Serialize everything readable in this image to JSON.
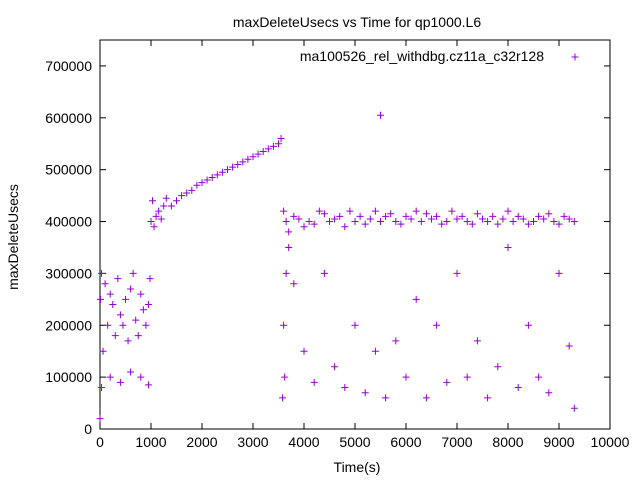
{
  "chart_data": {
    "type": "scatter",
    "title": "maxDeleteUsecs vs Time for qp1000.L6",
    "xlabel": "Time(s)",
    "ylabel": "maxDeleteUsecs",
    "xlim": [
      0,
      10000
    ],
    "ylim": [
      0,
      750000
    ],
    "x_ticks": [
      "0",
      "1000",
      "2000",
      "3000",
      "4000",
      "5000",
      "6000",
      "7000",
      "8000",
      "9000",
      "10000"
    ],
    "y_ticks": [
      "0",
      "100000",
      "200000",
      "300000",
      "400000",
      "500000",
      "600000",
      "700000"
    ],
    "grid": false,
    "legend_position": "top-right",
    "marker": "plus",
    "series": [
      {
        "name": "ma100526_rel_withdbg.cz11a_c32r128",
        "color": "#9400d3",
        "x": [
          0,
          10,
          30,
          60,
          100,
          150,
          200,
          250,
          300,
          350,
          400,
          450,
          500,
          550,
          600,
          650,
          700,
          750,
          800,
          850,
          900,
          950,
          980,
          1000,
          1030,
          1060,
          1100,
          1150,
          1200,
          1250,
          1300,
          1400,
          1500,
          1600,
          1700,
          1800,
          1900,
          2000,
          2100,
          2200,
          2300,
          2400,
          2500,
          2600,
          2700,
          2800,
          2900,
          3000,
          3100,
          3200,
          3300,
          3400,
          3500,
          3550,
          3600,
          3650,
          3700,
          3800,
          3900,
          4000,
          4100,
          4200,
          4300,
          4400,
          4500,
          4600,
          4700,
          4800,
          4900,
          5000,
          5100,
          5200,
          5300,
          5400,
          5500,
          5600,
          5700,
          5800,
          5900,
          6000,
          6100,
          6200,
          6300,
          6400,
          6500,
          6600,
          6700,
          6800,
          6900,
          7000,
          7100,
          7200,
          7300,
          7400,
          7500,
          7600,
          7700,
          7800,
          7900,
          8000,
          8100,
          8200,
          8300,
          8400,
          8500,
          8600,
          8700,
          8800,
          8900,
          9000,
          9100,
          9200,
          9300
        ],
        "y": [
          20000,
          250000,
          300000,
          150000,
          280000,
          200000,
          260000,
          240000,
          180000,
          290000,
          220000,
          200000,
          250000,
          170000,
          270000,
          300000,
          210000,
          180000,
          260000,
          230000,
          200000,
          240000,
          290000,
          400000,
          440000,
          390000,
          410000,
          420000,
          405000,
          430000,
          445000,
          430000,
          440000,
          450000,
          455000,
          460000,
          470000,
          475000,
          480000,
          485000,
          490000,
          495000,
          500000,
          505000,
          510000,
          515000,
          520000,
          525000,
          530000,
          535000,
          540000,
          545000,
          550000,
          560000,
          420000,
          400000,
          380000,
          410000,
          405000,
          390000,
          400000,
          395000,
          420000,
          415000,
          400000,
          405000,
          410000,
          390000,
          420000,
          400000,
          410000,
          395000,
          405000,
          420000,
          400000,
          410000,
          415000,
          400000,
          395000,
          410000,
          405000,
          420000,
          400000,
          415000,
          405000,
          410000,
          395000,
          400000,
          420000,
          405000,
          410000,
          400000,
          395000,
          415000,
          405000,
          400000,
          410000,
          395000,
          405000,
          420000,
          400000,
          410000,
          405000,
          395000,
          400000,
          410000,
          405000,
          415000,
          400000,
          395000,
          410000,
          405000,
          400000
        ]
      },
      {
        "name": "",
        "color": "#9400d3",
        "x": [
          30,
          200,
          400,
          600,
          800,
          950,
          3580,
          3600,
          3620,
          3650,
          3700,
          3800,
          4000,
          4200,
          4400,
          4600,
          4800,
          5000,
          5200,
          5400,
          5500,
          5600,
          5800,
          6000,
          6200,
          6400,
          6600,
          6800,
          7000,
          7200,
          7400,
          7600,
          7800,
          8000,
          8200,
          8400,
          8600,
          8800,
          9000,
          9200,
          9300
        ],
        "y": [
          80000,
          100000,
          90000,
          110000,
          100000,
          85000,
          60000,
          200000,
          100000,
          300000,
          350000,
          280000,
          150000,
          90000,
          300000,
          120000,
          80000,
          200000,
          70000,
          150000,
          605000,
          60000,
          170000,
          100000,
          250000,
          60000,
          200000,
          90000,
          300000,
          100000,
          170000,
          60000,
          120000,
          350000,
          80000,
          200000,
          100000,
          70000,
          300000,
          160000,
          40000
        ]
      }
    ]
  }
}
